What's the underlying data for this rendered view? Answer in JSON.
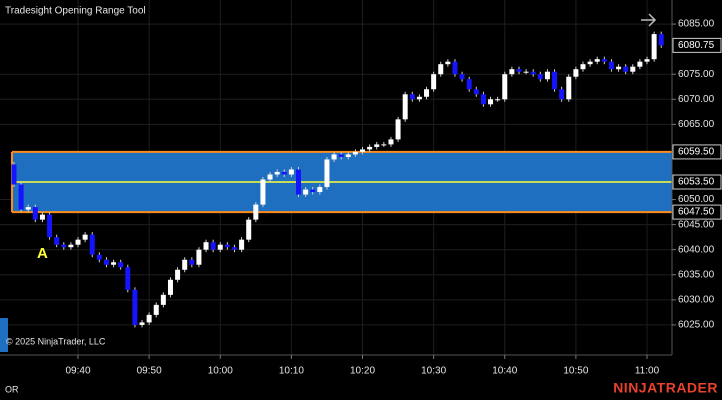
{
  "chart_data": {
    "type": "candlestick",
    "title": "Tradesight Opening Range Tool",
    "copyright": "© 2025 NinjaTrader, LLC",
    "indicator": "OR",
    "brand": "NINJATRADER",
    "annotation": {
      "text": "A",
      "x": "09:35"
    },
    "x": [
      "09:31",
      "09:32",
      "09:33",
      "09:34",
      "09:35",
      "09:36",
      "09:37",
      "09:38",
      "09:39",
      "09:40",
      "09:41",
      "09:42",
      "09:43",
      "09:44",
      "09:45",
      "09:46",
      "09:47",
      "09:48",
      "09:49",
      "09:50",
      "09:51",
      "09:52",
      "09:53",
      "09:54",
      "09:55",
      "09:56",
      "09:57",
      "09:58",
      "09:59",
      "10:00",
      "10:01",
      "10:02",
      "10:03",
      "10:04",
      "10:05",
      "10:06",
      "10:07",
      "10:08",
      "10:09",
      "10:10",
      "10:11",
      "10:12",
      "10:13",
      "10:14",
      "10:15",
      "10:16",
      "10:17",
      "10:18",
      "10:19",
      "10:20",
      "10:21",
      "10:22",
      "10:23",
      "10:24",
      "10:25",
      "10:26",
      "10:27",
      "10:28",
      "10:29",
      "10:30",
      "10:31",
      "10:32",
      "10:33",
      "10:34",
      "10:35",
      "10:36",
      "10:37",
      "10:38",
      "10:39",
      "10:40",
      "10:41",
      "10:42",
      "10:43",
      "10:44",
      "10:45",
      "10:46",
      "10:47",
      "10:48",
      "10:49",
      "10:50",
      "10:51",
      "10:52",
      "10:53",
      "10:54",
      "10:55",
      "10:56",
      "10:57",
      "10:58",
      "10:59",
      "11:00",
      "11:01",
      "11:02"
    ],
    "open": [
      6057,
      6053,
      6048,
      6048.5,
      6046,
      6047,
      6042.5,
      6041,
      6040.5,
      6041,
      6042,
      6043,
      6039,
      6038,
      6037,
      6037.5,
      6036.5,
      6032,
      6025,
      6025.5,
      6027,
      6029,
      6031,
      6034,
      6036,
      6038,
      6037,
      6040,
      6041.5,
      6040,
      6041,
      6040.5,
      6040,
      6042,
      6046,
      6049,
      6054,
      6055,
      6055.5,
      6055,
      6056,
      6051,
      6052,
      6051.5,
      6052.5,
      6058,
      6059,
      6058.5,
      6059,
      6059.5,
      6060,
      6060.5,
      6061,
      6061,
      6062,
      6066,
      6071,
      6070,
      6070.5,
      6072,
      6075,
      6077,
      6077.5,
      6075,
      6074,
      6072,
      6071,
      6069,
      6070,
      6070,
      6075,
      6076,
      6075.5,
      6075.5,
      6075,
      6074,
      6075.5,
      6072,
      6070,
      6074.5,
      6076,
      6077,
      6077.5,
      6078,
      6077.5,
      6076,
      6076.5,
      6075.5,
      6076.5,
      6077.5,
      6078,
      6083
    ],
    "high": [
      6057.5,
      6053.5,
      6049,
      6049,
      6047.5,
      6047.5,
      6043,
      6041.5,
      6041.5,
      6042.5,
      6043.5,
      6043.5,
      6039.5,
      6038.5,
      6038,
      6038,
      6037,
      6032.5,
      6026,
      6027.5,
      6029.5,
      6031.5,
      6034.5,
      6036.5,
      6038.5,
      6038.5,
      6040.5,
      6042,
      6042,
      6041.5,
      6041.5,
      6041,
      6042.5,
      6046.5,
      6049.5,
      6054.5,
      6055.5,
      6056,
      6056,
      6056.5,
      6056.5,
      6052.5,
      6052.5,
      6053,
      6058.5,
      6059.5,
      6059.5,
      6059.5,
      6060,
      6060.5,
      6061,
      6061.5,
      6061.5,
      6062.5,
      6066.5,
      6071.5,
      6071.5,
      6071,
      6072.5,
      6075.5,
      6077.5,
      6078,
      6078,
      6075.5,
      6074.5,
      6072.5,
      6071.5,
      6070.5,
      6070.5,
      6075.5,
      6076.5,
      6076.5,
      6076,
      6076,
      6075.5,
      6076,
      6076,
      6072.5,
      6075,
      6076.5,
      6077.5,
      6078,
      6078.5,
      6078.5,
      6078,
      6077,
      6077,
      6077,
      6078,
      6078.5,
      6083.5,
      6083.5
    ],
    "low": [
      6052.5,
      6047.5,
      6047.5,
      6045.5,
      6045.5,
      6042,
      6040.5,
      6040,
      6040,
      6040.5,
      6041.5,
      6038.5,
      6037.5,
      6036.5,
      6036.5,
      6036,
      6031.5,
      6024.5,
      6024.5,
      6025,
      6026.5,
      6028.5,
      6030.5,
      6033.5,
      6035.5,
      6036.5,
      6036.5,
      6039.5,
      6039.5,
      6039.5,
      6040,
      6039.5,
      6039.5,
      6041.5,
      6045.5,
      6048.5,
      6053.5,
      6054.5,
      6054.5,
      6054.5,
      6050.5,
      6050.5,
      6051,
      6051,
      6052,
      6057.5,
      6058,
      6058,
      6058.5,
      6059,
      6059.5,
      6060,
      6060.5,
      6060.5,
      6061.5,
      6065.5,
      6069.5,
      6069.5,
      6070,
      6071.5,
      6074.5,
      6076.5,
      6074.5,
      6073.5,
      6071.5,
      6070.5,
      6068.5,
      6068.5,
      6069.5,
      6069.5,
      6074.5,
      6075,
      6075,
      6074.5,
      6073.5,
      6073.5,
      6071.5,
      6069.5,
      6069.5,
      6074,
      6075.5,
      6076.5,
      6077,
      6077,
      6075.5,
      6075.5,
      6075,
      6075,
      6076,
      6077,
      6077.5,
      6080.25
    ],
    "close": [
      6053,
      6048,
      6048.5,
      6046,
      6047,
      6042.5,
      6041,
      6040.5,
      6041,
      6042,
      6043,
      6039,
      6038,
      6037,
      6037.5,
      6036.5,
      6032,
      6025,
      6025.5,
      6027,
      6029,
      6031,
      6034,
      6036,
      6038,
      6037,
      6040,
      6041.5,
      6040,
      6041,
      6040.5,
      6040,
      6042,
      6046,
      6049,
      6054,
      6055,
      6055.5,
      6055,
      6056,
      6051,
      6052,
      6051.5,
      6052.5,
      6058,
      6059,
      6058.5,
      6059,
      6059.5,
      6060,
      6060.5,
      6061,
      6061,
      6062,
      6066,
      6071,
      6070,
      6070.5,
      6072,
      6075,
      6077,
      6077.5,
      6075,
      6074,
      6072,
      6071,
      6069,
      6070,
      6070,
      6075,
      6076,
      6075.5,
      6075.5,
      6075,
      6074,
      6075.5,
      6072,
      6070,
      6074.5,
      6076,
      6077,
      6077.5,
      6078,
      6077.5,
      6076,
      6076.5,
      6075.5,
      6076.5,
      6077.5,
      6078,
      6083,
      6080.75
    ],
    "up_color": "#ffffff",
    "down_color": "#1414ff",
    "wick_color": "#cfcfcf",
    "ylim": [
      6019,
      6089.8
    ],
    "yticks": [
      {
        "value": 6025,
        "label": "6025.00"
      },
      {
        "value": 6030,
        "label": "6030.00"
      },
      {
        "value": 6035,
        "label": "6035.00"
      },
      {
        "value": 6040,
        "label": "6040.00"
      },
      {
        "value": 6045,
        "label": "6045.00"
      },
      {
        "value": 6050,
        "label": "6050.00"
      },
      {
        "value": 6065,
        "label": "6065.00"
      },
      {
        "value": 6070,
        "label": "6070.00"
      },
      {
        "value": 6075,
        "label": "6075.00"
      },
      {
        "value": 6085,
        "label": "6085.00"
      }
    ],
    "xticks": [
      "09:40",
      "09:50",
      "10:00",
      "10:10",
      "10:20",
      "10:30",
      "10:40",
      "10:50",
      "11:00"
    ],
    "grid": true,
    "opening_range": {
      "high": {
        "value": 6059.5,
        "label": "6059.50"
      },
      "mid": {
        "value": 6053.5,
        "label": "6053.50"
      },
      "low": {
        "value": 6047.5,
        "label": "6047.50"
      },
      "fill": "#1e6fc0",
      "border_color": "#ff8c1a",
      "mid_color": "#ffff33"
    },
    "last_price": {
      "value": 6080.75,
      "label": "6080.75"
    }
  }
}
